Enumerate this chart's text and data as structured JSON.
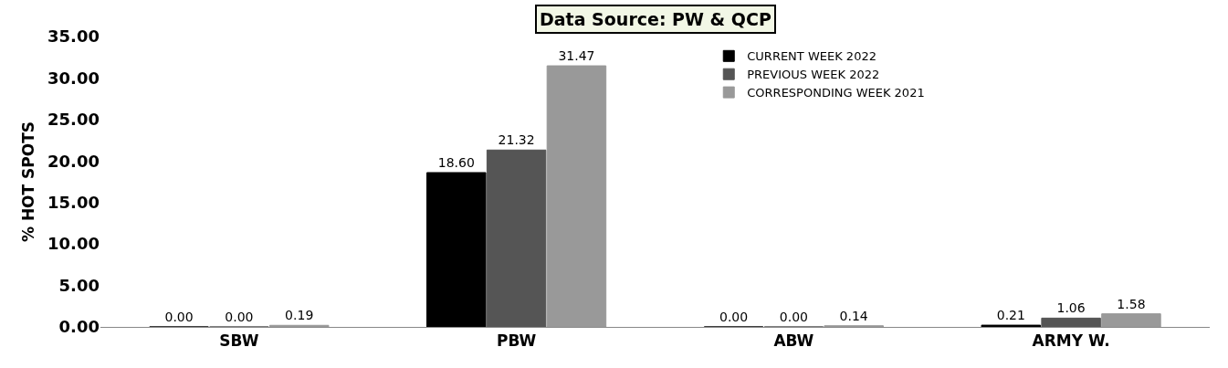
{
  "chart_data": {
    "type": "bar",
    "title": "Data Source: PW & QCP",
    "ylabel": "% HOT SPOTS",
    "categories": [
      "SBW",
      "PBW",
      "ABW",
      "ARMY W."
    ],
    "series": [
      {
        "name": "CURRENT WEEK 2022",
        "color": "#000000",
        "values": [
          0.0,
          18.6,
          0.0,
          0.21
        ],
        "value_labels": [
          "0.00",
          "18.60",
          "0.00",
          "0.21"
        ]
      },
      {
        "name": "PREVIOUS WEEK 2022",
        "color": "#555555",
        "values": [
          0.0,
          21.32,
          0.0,
          1.06
        ],
        "value_labels": [
          "0.00",
          "21.32",
          "0.00",
          "1.06"
        ]
      },
      {
        "name": "CORRESPONDING WEEK 2021",
        "color": "#999999",
        "values": [
          0.19,
          31.47,
          0.14,
          1.58
        ],
        "value_labels": [
          "0.19",
          "31.47",
          "0.14",
          "1.58"
        ]
      }
    ],
    "ylim": [
      0,
      35
    ],
    "yticks": [
      {
        "value": 0,
        "label": "0.00"
      },
      {
        "value": 5,
        "label": "5.00"
      },
      {
        "value": 10,
        "label": "10.00"
      },
      {
        "value": 15,
        "label": "15.00"
      },
      {
        "value": 20,
        "label": "20.00"
      },
      {
        "value": 25,
        "label": "25.00"
      },
      {
        "value": 30,
        "label": "30.00"
      },
      {
        "value": 35,
        "label": "35.00"
      }
    ],
    "grid": false,
    "legend": "top right"
  }
}
